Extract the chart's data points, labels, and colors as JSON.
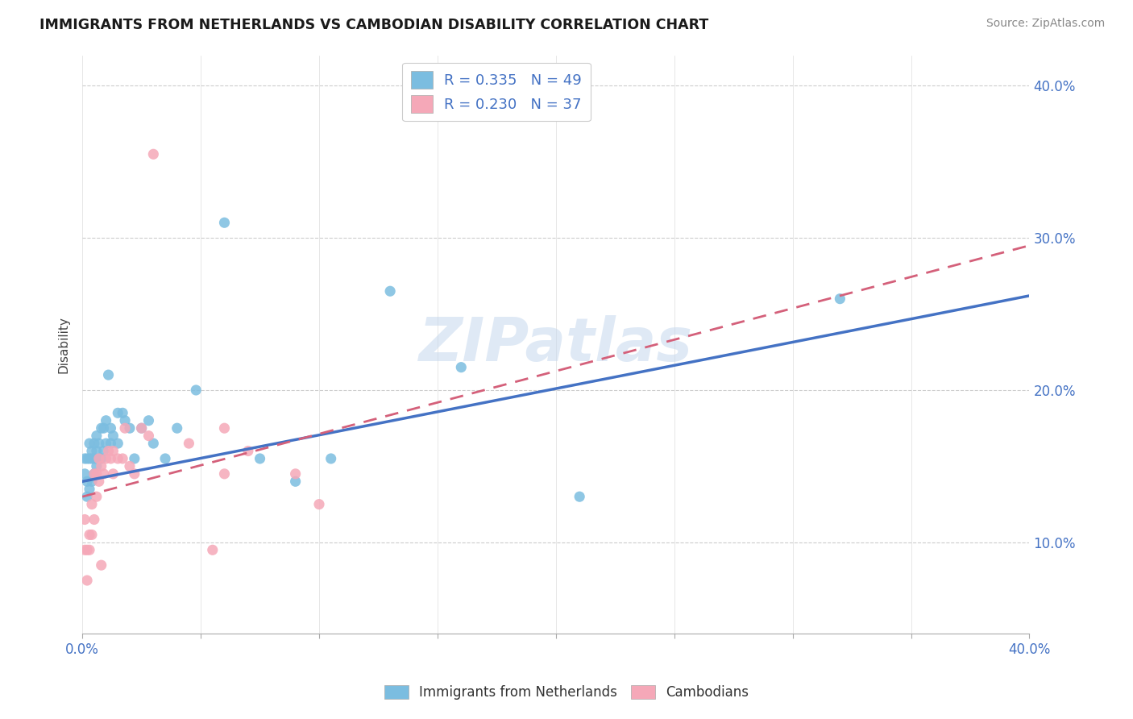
{
  "title": "IMMIGRANTS FROM NETHERLANDS VS CAMBODIAN DISABILITY CORRELATION CHART",
  "source": "Source: ZipAtlas.com",
  "ylabel": "Disability",
  "xlim": [
    0.0,
    0.4
  ],
  "ylim": [
    0.04,
    0.42
  ],
  "yticks": [
    0.1,
    0.2,
    0.3,
    0.4
  ],
  "ytick_labels": [
    "10.0%",
    "20.0%",
    "30.0%",
    "40.0%"
  ],
  "xticks": [
    0.0,
    0.05,
    0.1,
    0.15,
    0.2,
    0.25,
    0.3,
    0.35,
    0.4
  ],
  "xtick_labels_show": [
    "0.0%",
    "40.0%"
  ],
  "blue_color": "#7bbde0",
  "pink_color": "#f5a8b8",
  "blue_line_color": "#4472c4",
  "pink_line_color": "#d4607a",
  "legend_r1": "R = 0.335",
  "legend_n1": "N = 49",
  "legend_r2": "R = 0.230",
  "legend_n2": "N = 37",
  "watermark": "ZIPatlas",
  "legend_label1": "Immigrants from Netherlands",
  "legend_label2": "Cambodians",
  "blue_line_x0": 0.0,
  "blue_line_y0": 0.14,
  "blue_line_x1": 0.4,
  "blue_line_y1": 0.262,
  "pink_line_x0": 0.0,
  "pink_line_y0": 0.13,
  "pink_line_x1": 0.4,
  "pink_line_y1": 0.295,
  "blue_scatter_x": [
    0.001,
    0.001,
    0.002,
    0.002,
    0.002,
    0.003,
    0.003,
    0.003,
    0.004,
    0.004,
    0.004,
    0.005,
    0.005,
    0.005,
    0.006,
    0.006,
    0.006,
    0.007,
    0.007,
    0.008,
    0.008,
    0.009,
    0.009,
    0.01,
    0.01,
    0.011,
    0.012,
    0.012,
    0.013,
    0.015,
    0.015,
    0.017,
    0.018,
    0.02,
    0.022,
    0.025,
    0.028,
    0.03,
    0.035,
    0.04,
    0.048,
    0.06,
    0.075,
    0.09,
    0.105,
    0.13,
    0.16,
    0.21,
    0.32
  ],
  "blue_scatter_y": [
    0.145,
    0.155,
    0.13,
    0.14,
    0.155,
    0.135,
    0.155,
    0.165,
    0.14,
    0.155,
    0.16,
    0.145,
    0.155,
    0.165,
    0.15,
    0.16,
    0.17,
    0.155,
    0.165,
    0.155,
    0.175,
    0.16,
    0.175,
    0.165,
    0.18,
    0.21,
    0.165,
    0.175,
    0.17,
    0.165,
    0.185,
    0.185,
    0.18,
    0.175,
    0.155,
    0.175,
    0.18,
    0.165,
    0.155,
    0.175,
    0.2,
    0.31,
    0.155,
    0.14,
    0.155,
    0.265,
    0.215,
    0.13,
    0.26
  ],
  "pink_scatter_x": [
    0.001,
    0.001,
    0.002,
    0.002,
    0.003,
    0.003,
    0.004,
    0.004,
    0.005,
    0.005,
    0.006,
    0.006,
    0.007,
    0.007,
    0.008,
    0.009,
    0.01,
    0.011,
    0.012,
    0.013,
    0.015,
    0.017,
    0.02,
    0.022,
    0.025,
    0.028,
    0.03,
    0.045,
    0.055,
    0.06,
    0.06,
    0.07,
    0.09,
    0.1,
    0.018,
    0.013,
    0.008
  ],
  "pink_scatter_y": [
    0.095,
    0.115,
    0.075,
    0.095,
    0.095,
    0.105,
    0.105,
    0.125,
    0.115,
    0.145,
    0.13,
    0.145,
    0.14,
    0.155,
    0.15,
    0.145,
    0.155,
    0.16,
    0.155,
    0.145,
    0.155,
    0.155,
    0.15,
    0.145,
    0.175,
    0.17,
    0.355,
    0.165,
    0.095,
    0.145,
    0.175,
    0.16,
    0.145,
    0.125,
    0.175,
    0.16,
    0.085
  ]
}
